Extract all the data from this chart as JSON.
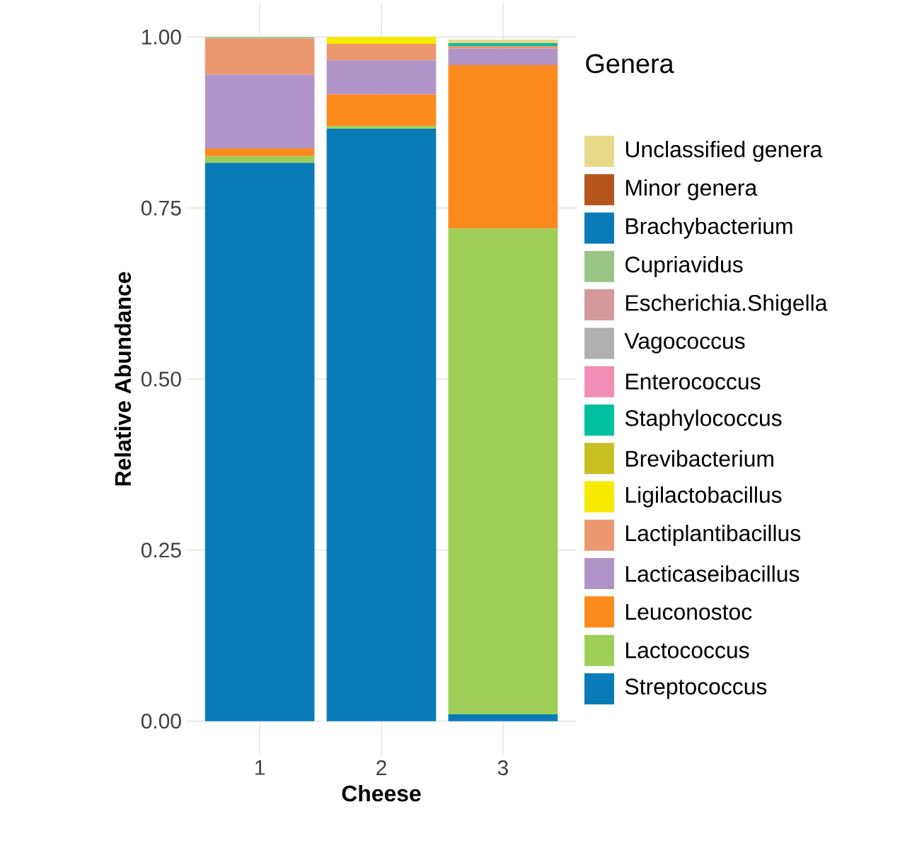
{
  "chart_data": {
    "type": "bar",
    "stacked": true,
    "xlabel": "Cheese",
    "ylabel": "Relative Abundance",
    "legend_title": "Genera",
    "legend": "right",
    "grid": true,
    "categories": [
      "1",
      "2",
      "3"
    ],
    "ylim": [
      -0.05,
      1.05
    ],
    "yticks": [
      {
        "value": 0,
        "label": "0.00"
      },
      {
        "value": 0.25,
        "label": "0.25"
      },
      {
        "value": 0.5,
        "label": "0.50"
      },
      {
        "value": 0.75,
        "label": "0.75"
      },
      {
        "value": 1,
        "label": "1.00"
      }
    ],
    "series": [
      {
        "name": "Streptococcus",
        "color": "#0a7bb8",
        "values": [
          0.816,
          0.866,
          0.01
        ]
      },
      {
        "name": "Lactococcus",
        "color": "#9dcf58",
        "values": [
          0.01,
          0.004,
          0.71
        ]
      },
      {
        "name": "Leuconostoc",
        "color": "#fd8a1d",
        "values": [
          0.011,
          0.046,
          0.239
        ]
      },
      {
        "name": "Lacticaseibacillus",
        "color": "#b094c8",
        "values": [
          0.108,
          0.05,
          0.024
        ]
      },
      {
        "name": "Lactiplantibacillus",
        "color": "#eb9870",
        "values": [
          0.053,
          0.024,
          0.004
        ]
      },
      {
        "name": "Ligilactobacillus",
        "color": "#f5ea00",
        "values": [
          0,
          0.01,
          0
        ]
      },
      {
        "name": "Brevibacterium",
        "color": "#c8bf25",
        "values": [
          0,
          0,
          0
        ]
      },
      {
        "name": "Staphylococcus",
        "color": "#00c0a0",
        "values": [
          0,
          0,
          0.004
        ]
      },
      {
        "name": "Enterococcus",
        "color": "#f28fb6",
        "values": [
          0,
          0,
          0
        ]
      },
      {
        "name": "Vagococcus",
        "color": "#b0b0b0",
        "values": [
          0,
          0,
          0
        ]
      },
      {
        "name": "Escherichia.Shigella",
        "color": "#d4999a",
        "values": [
          0,
          0,
          0
        ]
      },
      {
        "name": "Cupriavidus",
        "color": "#98c486",
        "values": [
          0.002,
          0,
          0
        ]
      },
      {
        "name": "Brachybacterium",
        "color": "#0a7bb8",
        "values": [
          0,
          0,
          0
        ]
      },
      {
        "name": "Minor genera",
        "color": "#b5541c",
        "values": [
          0,
          0,
          0
        ]
      },
      {
        "name": "Unclassified genera",
        "color": "#e8d88a",
        "values": [
          0,
          0,
          0.005
        ]
      }
    ]
  }
}
